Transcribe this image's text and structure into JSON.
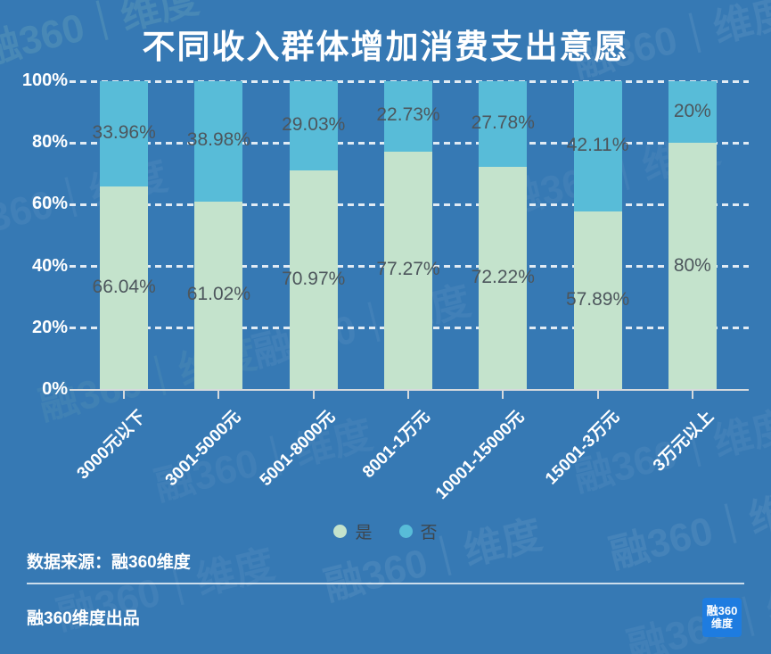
{
  "title": "不同收入群体增加消费支出意愿",
  "chart_data": {
    "type": "bar",
    "stacked": true,
    "title": "不同收入群体增加消费支出意愿",
    "categories": [
      "3000元以下",
      "3001-5000元",
      "5001-8000元",
      "8001-1万元",
      "10001-15000元",
      "15001-3万元",
      "3万元以上"
    ],
    "series": [
      {
        "name": "是",
        "color": "#c4e3cc",
        "values": [
          66.04,
          61.02,
          70.97,
          77.27,
          72.22,
          57.89,
          80
        ],
        "labels": [
          "66.04%",
          "61.02%",
          "70.97%",
          "77.27%",
          "72.22%",
          "57.89%",
          "80%"
        ]
      },
      {
        "name": "否",
        "color": "#58bcd8",
        "values": [
          33.96,
          38.98,
          29.03,
          22.73,
          27.78,
          42.11,
          20
        ],
        "labels": [
          "33.96%",
          "38.98%",
          "29.03%",
          "22.73%",
          "27.78%",
          "42.11%",
          "20%"
        ]
      }
    ],
    "y_ticks": [
      "0%",
      "20%",
      "40%",
      "60%",
      "80%",
      "100%"
    ],
    "ylim": [
      0,
      100
    ],
    "grid": "dashed-horizontal",
    "legend_position": "bottom"
  },
  "footer": {
    "source": "数据来源：融360维度",
    "credit": "融360维度出品",
    "logo_line1": "融360",
    "logo_line2": "维度"
  },
  "watermark": {
    "text": "融360｜维度"
  },
  "colors": {
    "background": "#3679b4",
    "bar_yes": "#c4e3cc",
    "bar_no": "#58bcd8",
    "value_label_text": "#4d565c",
    "legend_text": "#3d464e",
    "axis_line": "#d6dadd",
    "logo_background": "#1e7ce0",
    "title_text": "#ffffff"
  }
}
